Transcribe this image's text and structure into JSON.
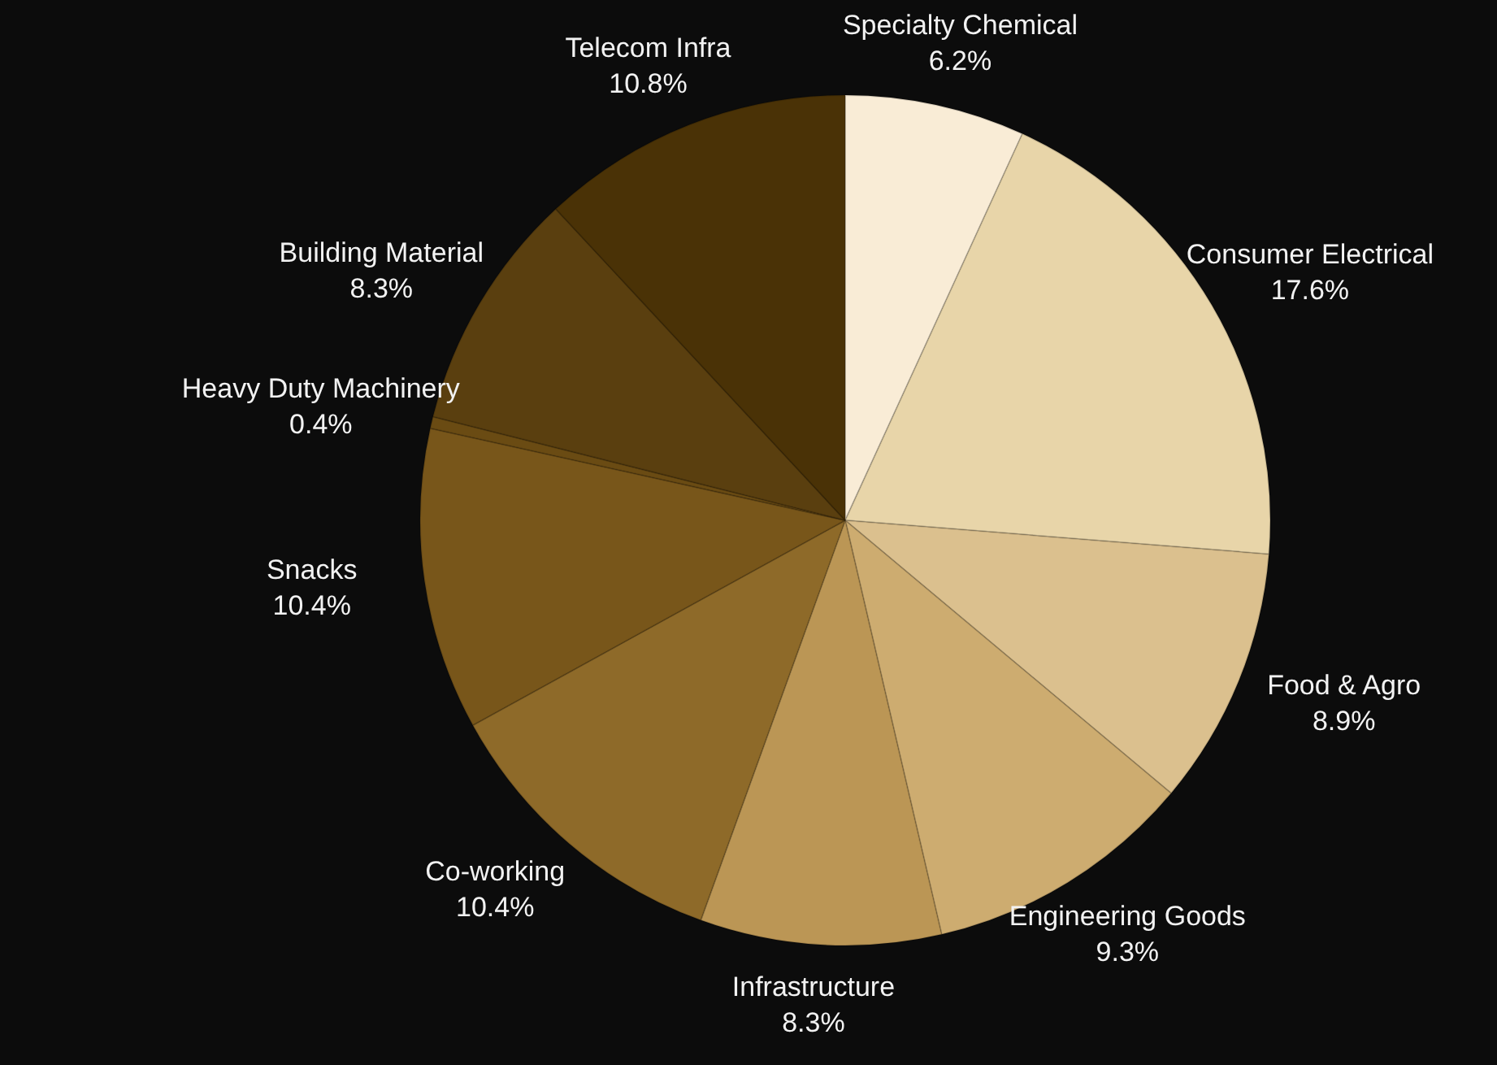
{
  "chart_data": {
    "type": "pie",
    "categories": [
      "Specialty Chemical",
      "Consumer Electrical",
      "Food & Agro",
      "Engineering Goods",
      "Infrastructure",
      "Co-working",
      "Snacks",
      "Heavy Duty Machinery",
      "Building Material",
      "Telecom Infra"
    ],
    "values": [
      6.2,
      17.6,
      8.9,
      9.3,
      8.3,
      10.4,
      10.4,
      0.4,
      8.3,
      10.8
    ],
    "value_labels": [
      "6.2%",
      "17.6%",
      "8.9%",
      "9.3%",
      "8.3%",
      "10.4%",
      "10.4%",
      "0.4%",
      "8.3%",
      "10.8%"
    ],
    "colors": [
      "#f9ecd6",
      "#e8d5a9",
      "#dbc08e",
      "#cdac70",
      "#bb9655",
      "#8e6a29",
      "#78561a",
      "#6a4b13",
      "#5a3f0f",
      "#4a3206"
    ],
    "legend": false
  }
}
